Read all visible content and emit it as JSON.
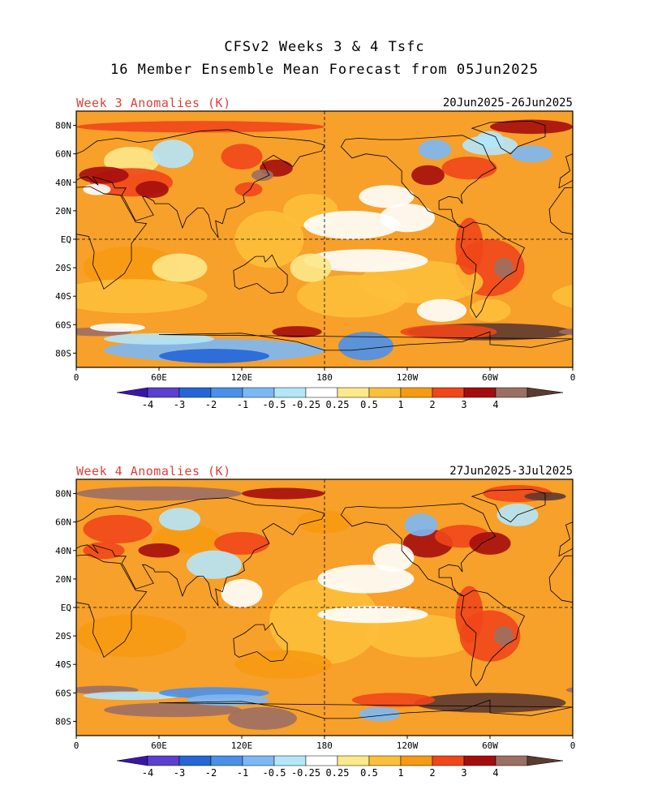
{
  "header": {
    "line1": "CFSv2 Weeks 3 & 4 Tsfc",
    "line2": "16 Member Ensemble Mean Forecast from 05Jun2025"
  },
  "panels": [
    {
      "label": "Week 3 Anomalies (K)",
      "dates": "20Jun2025-26Jun2025"
    },
    {
      "label": "Week 4 Anomalies (K)",
      "dates": "27Jun2025-3Jul2025"
    }
  ],
  "axes": {
    "lat_labels": [
      "80N",
      "60N",
      "40N",
      "20N",
      "EQ",
      "20S",
      "40S",
      "60S",
      "80S"
    ],
    "lon_labels": [
      "0",
      "60E",
      "120E",
      "180",
      "120W",
      "60W",
      "0"
    ]
  },
  "colorbar": {
    "labels": [
      "-4",
      "-3",
      "-2",
      "-1",
      "-0.5",
      "-0.25",
      "0.25",
      "0.5",
      "1",
      "2",
      "3",
      "4"
    ],
    "colors": [
      "#3a16a8",
      "#5a3fd0",
      "#2466d8",
      "#4a90ea",
      "#7cb8f5",
      "#b4e6fa",
      "#ffffff",
      "#fde88a",
      "#fdbf3a",
      "#f79a12",
      "#f0461a",
      "#a50d0d",
      "#9c6f64",
      "#5c3a30"
    ]
  },
  "colors": {
    "panel_label": "#e0403a",
    "land_outline": "#000000",
    "background_anomaly": "#f7a02a"
  }
}
